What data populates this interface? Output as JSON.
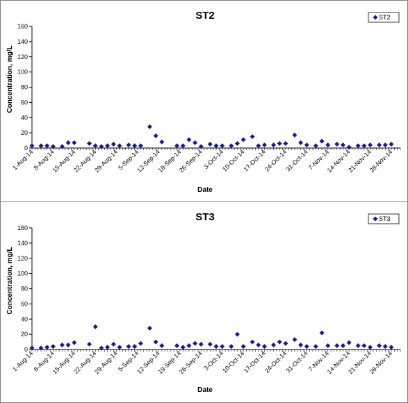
{
  "chart_data": [
    {
      "type": "scatter",
      "title": "ST2",
      "xlabel": "Date",
      "ylabel": "Concentration, mg/L",
      "ylim": [
        0,
        160
      ],
      "yticks": [
        0,
        20,
        40,
        60,
        80,
        100,
        120,
        140,
        160
      ],
      "xrange": [
        "2014-08-01",
        "2014-12-01"
      ],
      "xtick_labels": [
        "1-Aug-14",
        "8-Aug-14",
        "15-Aug-14",
        "22-Aug-14",
        "29-Aug-14",
        "5-Sep-14",
        "12-Sep-14",
        "19-Sep-14",
        "26-Sep-14",
        "3-Oct-14",
        "10-Oct-14",
        "17-Oct-14",
        "24-Oct-14",
        "31-Oct-14",
        "7-Nov-14",
        "14-Nov-14",
        "21-Nov-14",
        "28-Nov-14"
      ],
      "grid": false,
      "legend_position": "top-right",
      "marker_color": "#1a1a8c",
      "series": [
        {
          "name": "ST2",
          "points": [
            [
              "2014-08-01",
              3
            ],
            [
              "2014-08-04",
              3
            ],
            [
              "2014-08-06",
              3
            ],
            [
              "2014-08-08",
              2
            ],
            [
              "2014-08-11",
              2
            ],
            [
              "2014-08-13",
              7
            ],
            [
              "2014-08-15",
              7
            ],
            [
              "2014-08-20",
              6
            ],
            [
              "2014-08-22",
              3
            ],
            [
              "2014-08-24",
              2
            ],
            [
              "2014-08-26",
              3
            ],
            [
              "2014-08-28",
              5
            ],
            [
              "2014-08-30",
              3
            ],
            [
              "2014-09-02",
              4
            ],
            [
              "2014-09-04",
              3
            ],
            [
              "2014-09-06",
              3
            ],
            [
              "2014-09-09",
              28
            ],
            [
              "2014-09-11",
              16
            ],
            [
              "2014-09-13",
              8
            ],
            [
              "2014-09-18",
              3
            ],
            [
              "2014-09-20",
              3
            ],
            [
              "2014-09-22",
              11
            ],
            [
              "2014-09-24",
              7
            ],
            [
              "2014-09-26",
              2
            ],
            [
              "2014-09-29",
              5
            ],
            [
              "2014-10-01",
              3
            ],
            [
              "2014-10-03",
              3
            ],
            [
              "2014-10-06",
              3
            ],
            [
              "2014-10-08",
              6
            ],
            [
              "2014-10-10",
              11
            ],
            [
              "2014-10-13",
              15
            ],
            [
              "2014-10-15",
              3
            ],
            [
              "2014-10-17",
              4
            ],
            [
              "2014-10-20",
              4
            ],
            [
              "2014-10-22",
              6
            ],
            [
              "2014-10-24",
              6
            ],
            [
              "2014-10-27",
              17
            ],
            [
              "2014-10-29",
              7
            ],
            [
              "2014-10-31",
              4
            ],
            [
              "2014-11-03",
              3
            ],
            [
              "2014-11-05",
              9
            ],
            [
              "2014-11-07",
              4
            ],
            [
              "2014-11-10",
              5
            ],
            [
              "2014-11-12",
              4
            ],
            [
              "2014-11-14",
              1
            ],
            [
              "2014-11-17",
              3
            ],
            [
              "2014-11-19",
              3
            ],
            [
              "2014-11-21",
              4
            ],
            [
              "2014-11-24",
              4
            ],
            [
              "2014-11-26",
              4
            ],
            [
              "2014-11-28",
              5
            ]
          ]
        }
      ]
    },
    {
      "type": "scatter",
      "title": "ST3",
      "xlabel": "Date",
      "ylabel": "Concentration, mg/L",
      "ylim": [
        0,
        160
      ],
      "yticks": [
        0,
        20,
        40,
        60,
        80,
        100,
        120,
        140,
        160
      ],
      "xrange": [
        "2014-08-01",
        "2014-12-01"
      ],
      "xtick_labels": [
        "1-Aug-14",
        "8-Aug-14",
        "15-Aug-14",
        "22-Aug-14",
        "29-Aug-14",
        "5-Sep-14",
        "12-Sep-14",
        "19-Sep-14",
        "26-Sep-14",
        "3-Oct-14",
        "10-Oct-14",
        "17-Oct-14",
        "24-Oct-14",
        "31-Oct-14",
        "7-Nov-14",
        "14-Nov-14",
        "21-Nov-14",
        "28-Nov-14"
      ],
      "grid": false,
      "legend_position": "top-right",
      "marker_color": "#1a1a8c",
      "series": [
        {
          "name": "ST3",
          "points": [
            [
              "2014-08-01",
              2
            ],
            [
              "2014-08-04",
              2
            ],
            [
              "2014-08-06",
              3
            ],
            [
              "2014-08-08",
              4
            ],
            [
              "2014-08-11",
              6
            ],
            [
              "2014-08-13",
              6
            ],
            [
              "2014-08-15",
              9
            ],
            [
              "2014-08-20",
              7
            ],
            [
              "2014-08-22",
              30
            ],
            [
              "2014-08-24",
              2
            ],
            [
              "2014-08-26",
              3
            ],
            [
              "2014-08-28",
              7
            ],
            [
              "2014-08-30",
              3
            ],
            [
              "2014-09-02",
              4
            ],
            [
              "2014-09-04",
              4
            ],
            [
              "2014-09-06",
              8
            ],
            [
              "2014-09-09",
              28
            ],
            [
              "2014-09-11",
              10
            ],
            [
              "2014-09-13",
              5
            ],
            [
              "2014-09-18",
              5
            ],
            [
              "2014-09-20",
              3
            ],
            [
              "2014-09-22",
              5
            ],
            [
              "2014-09-24",
              8
            ],
            [
              "2014-09-26",
              7
            ],
            [
              "2014-09-29",
              7
            ],
            [
              "2014-10-01",
              4
            ],
            [
              "2014-10-03",
              4
            ],
            [
              "2014-10-06",
              4
            ],
            [
              "2014-10-08",
              20
            ],
            [
              "2014-10-10",
              4
            ],
            [
              "2014-10-13",
              10
            ],
            [
              "2014-10-15",
              6
            ],
            [
              "2014-10-17",
              4
            ],
            [
              "2014-10-20",
              6
            ],
            [
              "2014-10-22",
              10
            ],
            [
              "2014-10-24",
              8
            ],
            [
              "2014-10-27",
              13
            ],
            [
              "2014-10-29",
              6
            ],
            [
              "2014-10-31",
              4
            ],
            [
              "2014-11-03",
              4
            ],
            [
              "2014-11-05",
              22
            ],
            [
              "2014-11-07",
              5
            ],
            [
              "2014-11-10",
              5
            ],
            [
              "2014-11-12",
              5
            ],
            [
              "2014-11-14",
              9
            ],
            [
              "2014-11-17",
              5
            ],
            [
              "2014-11-19",
              5
            ],
            [
              "2014-11-21",
              3
            ],
            [
              "2014-11-24",
              5
            ],
            [
              "2014-11-26",
              4
            ],
            [
              "2014-11-28",
              3
            ]
          ]
        }
      ]
    }
  ]
}
